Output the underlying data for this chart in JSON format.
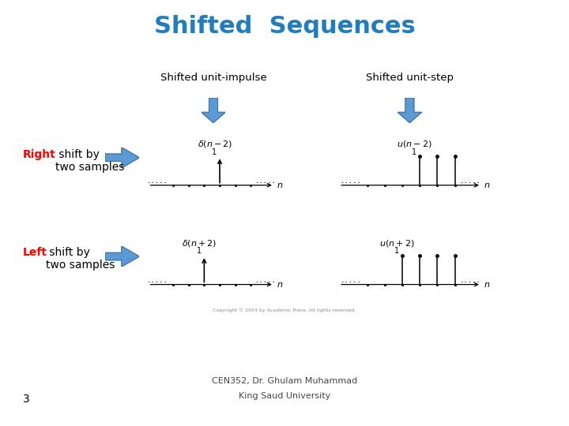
{
  "title": "Shifted  Sequences",
  "title_color": "#1F7EC2",
  "title_fontsize": 22,
  "col1_header": "Shifted unit-impulse",
  "col2_header": "Shifted unit-step",
  "row1_bold": "Right",
  "row1_rest": " shift by\ntwo samples",
  "row2_bold": "Left",
  "row2_rest": " shift by\ntwo samples",
  "footer_line1": "CEN352, Dr. Ghulam Muhammad",
  "footer_line2": "King Saud University",
  "page_num": "3",
  "background": "#ffffff",
  "arrow_color": "#5B9BD5",
  "arrow_edge": "#4472A8",
  "label_color": "red",
  "copyright": "Copyright © 2014 by Academic Press. All rights reserved."
}
